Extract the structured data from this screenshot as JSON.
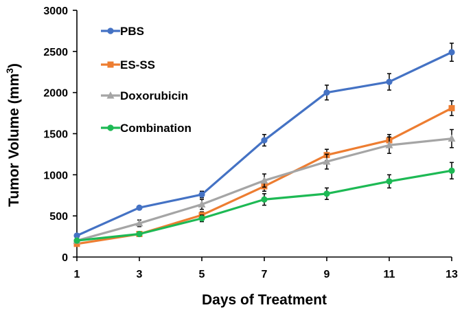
{
  "chart_data": {
    "type": "line",
    "title": "",
    "xlabel": "Days of Treatment",
    "ylabel": "Tumor Volume",
    "ylabel_unit": "(mm",
    "ylabel_unit_sup": "3",
    "ylabel_unit_close": ")",
    "x": [
      1,
      3,
      5,
      7,
      9,
      11,
      13
    ],
    "x_tick_labels": [
      "1",
      "3",
      "5",
      "7",
      "9",
      "11",
      "13"
    ],
    "xlim": [
      1,
      13
    ],
    "ylim": [
      0,
      3000
    ],
    "y_ticks": [
      0,
      500,
      1000,
      1500,
      2000,
      2500,
      3000
    ],
    "y_tick_labels": [
      "0",
      "500",
      "1000",
      "1500",
      "2000",
      "2500",
      "3000"
    ],
    "grid": false,
    "legend_position": "top-left",
    "series": [
      {
        "name": "PBS",
        "color": "#4472C4",
        "marker": "circle",
        "values": [
          260,
          600,
          760,
          1420,
          2000,
          2130,
          2490
        ],
        "errors": [
          20,
          20,
          40,
          70,
          90,
          100,
          110
        ]
      },
      {
        "name": "ES-SS",
        "color": "#ED7D31",
        "marker": "square",
        "values": [
          160,
          280,
          510,
          860,
          1240,
          1420,
          1810
        ],
        "errors": [
          15,
          20,
          40,
          60,
          70,
          70,
          90
        ]
      },
      {
        "name": "Doxorubicin",
        "color": "#A5A5A5",
        "marker": "triangle",
        "values": [
          200,
          410,
          640,
          930,
          1160,
          1360,
          1440
        ],
        "errors": [
          20,
          40,
          60,
          80,
          90,
          100,
          110
        ]
      },
      {
        "name": "Combination",
        "color": "#1DB954",
        "marker": "circle",
        "values": [
          200,
          280,
          470,
          700,
          770,
          920,
          1050
        ],
        "errors": [
          20,
          20,
          40,
          70,
          70,
          80,
          100
        ]
      }
    ]
  }
}
